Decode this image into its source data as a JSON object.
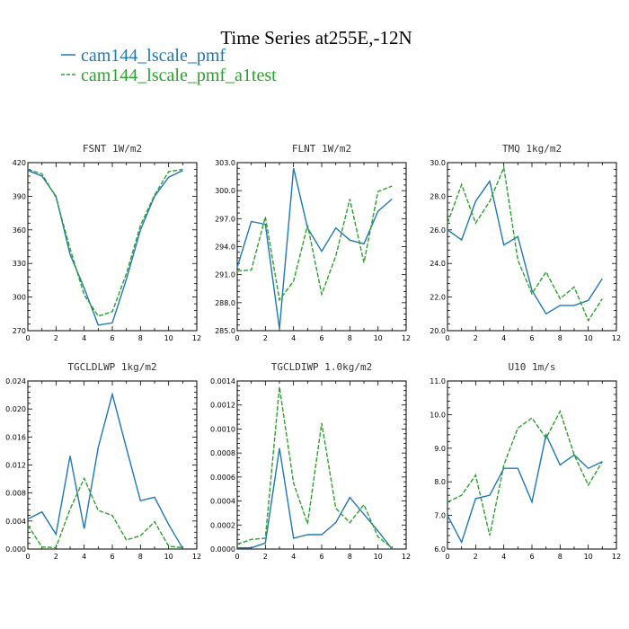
{
  "figure": {
    "title": "Time Series at255E,-12N",
    "legend": [
      {
        "name": "cam144_lscale_pmf",
        "color": "#1f77b4",
        "dash": "solid"
      },
      {
        "name": "cam144_lscale_pmf_a1test",
        "color": "#2ca02c",
        "dash": "dashed"
      }
    ]
  },
  "chart_data": [
    {
      "type": "line",
      "title": "FSNT   1W/m2",
      "x": [
        0,
        1,
        2,
        3,
        4,
        5,
        6,
        7,
        8,
        9,
        10,
        11
      ],
      "xlim": [
        0,
        12
      ],
      "xticks": [
        0,
        2,
        4,
        6,
        8,
        10,
        12
      ],
      "xtick_labels": [
        "0",
        "2",
        "4",
        "6",
        "8",
        "10",
        "12"
      ],
      "ylim": [
        270,
        420
      ],
      "yticks": [
        270,
        300,
        330,
        360,
        390,
        420
      ],
      "ytick_labels": [
        "270",
        "300",
        "330",
        "360",
        "390",
        "420"
      ],
      "series": [
        {
          "values": [
            413,
            408,
            390,
            338,
            308,
            275,
            277,
            316,
            360,
            390,
            407,
            413
          ]
        },
        {
          "values": [
            414,
            410,
            389,
            343,
            302,
            283,
            287,
            321,
            364,
            391,
            412,
            414
          ]
        }
      ]
    },
    {
      "type": "line",
      "title": "FLNT   1W/m2",
      "x": [
        0,
        1,
        2,
        3,
        4,
        5,
        6,
        7,
        8,
        9,
        10,
        11
      ],
      "xlim": [
        0,
        12
      ],
      "xticks": [
        0,
        2,
        4,
        6,
        8,
        10,
        12
      ],
      "xtick_labels": [
        "0",
        "2",
        "4",
        "6",
        "8",
        "10",
        "12"
      ],
      "ylim": [
        285,
        303
      ],
      "yticks": [
        285,
        288,
        291,
        294,
        297,
        300,
        303
      ],
      "ytick_labels": [
        "285.0",
        "288.0",
        "291.0",
        "294.0",
        "297.0",
        "300.0",
        "303.0"
      ],
      "series": [
        {
          "values": [
            291.8,
            296.7,
            296.4,
            285.2,
            302.4,
            296.0,
            293.5,
            296.0,
            294.7,
            294.3,
            297.8,
            299.1
          ]
        },
        {
          "values": [
            291.4,
            291.5,
            297.2,
            288.3,
            290.3,
            296.3,
            288.9,
            293.0,
            299.1,
            292.3,
            299.9,
            300.5
          ]
        }
      ]
    },
    {
      "type": "line",
      "title": "TMQ   1kg/m2",
      "x": [
        0,
        1,
        2,
        3,
        4,
        5,
        6,
        7,
        8,
        9,
        10,
        11
      ],
      "xlim": [
        0,
        12
      ],
      "xticks": [
        0,
        2,
        4,
        6,
        8,
        10,
        12
      ],
      "xtick_labels": [
        "0",
        "2",
        "4",
        "6",
        "8",
        "10",
        "12"
      ],
      "ylim": [
        20,
        30
      ],
      "yticks": [
        20,
        22,
        24,
        26,
        28,
        30
      ],
      "ytick_labels": [
        "20.0",
        "22.0",
        "24.0",
        "26.0",
        "28.0",
        "30.0"
      ],
      "series": [
        {
          "values": [
            26.0,
            25.4,
            27.7,
            28.9,
            25.1,
            25.6,
            22.4,
            21.0,
            21.5,
            21.5,
            21.8,
            23.1
          ]
        },
        {
          "values": [
            26.4,
            28.7,
            26.4,
            27.7,
            29.7,
            24.2,
            22.2,
            23.5,
            21.9,
            22.6,
            20.6,
            21.9
          ]
        }
      ]
    },
    {
      "type": "line",
      "title": "TGCLDLWP   1kg/m2",
      "x": [
        0,
        1,
        2,
        3,
        4,
        5,
        6,
        7,
        8,
        9,
        10,
        11
      ],
      "xlim": [
        0,
        12
      ],
      "xticks": [
        0,
        2,
        4,
        6,
        8,
        10,
        12
      ],
      "xtick_labels": [
        "0",
        "2",
        "4",
        "6",
        "8",
        "10",
        "12"
      ],
      "ylim": [
        0,
        0.024
      ],
      "yticks": [
        0,
        0.004,
        0.008,
        0.012,
        0.016,
        0.02,
        0.024
      ],
      "ytick_labels": [
        "0.000",
        "0.004",
        "0.008",
        "0.012",
        "0.016",
        "0.020",
        "0.024"
      ],
      "series": [
        {
          "values": [
            0.0043,
            0.0053,
            0.0021,
            0.0133,
            0.0029,
            0.0145,
            0.0221,
            0.0144,
            0.0069,
            0.0074,
            0.0035,
            0.0001
          ]
        },
        {
          "values": [
            0.0034,
            0.0003,
            0.0002,
            0.0057,
            0.0101,
            0.0055,
            0.0048,
            0.0013,
            0.0019,
            0.0039,
            0.0004,
            0.0002
          ]
        }
      ]
    },
    {
      "type": "line",
      "title": "TGCLDIWP   1.0kg/m2",
      "x": [
        0,
        1,
        2,
        3,
        4,
        5,
        6,
        7,
        8,
        9,
        10,
        11
      ],
      "xlim": [
        0,
        12
      ],
      "xticks": [
        0,
        2,
        4,
        6,
        8,
        10,
        12
      ],
      "xtick_labels": [
        "0",
        "2",
        "4",
        "6",
        "8",
        "10",
        "12"
      ],
      "ylim": [
        0,
        0.0014
      ],
      "yticks": [
        0,
        0.0002,
        0.0004,
        0.0006,
        0.0008,
        0.001,
        0.0012,
        0.0014
      ],
      "ytick_labels": [
        "0.0000",
        "0.0002",
        "0.0004",
        "0.0006",
        "0.0008",
        "0.0010",
        "0.0012",
        "0.0014"
      ],
      "series": [
        {
          "values": [
            1e-05,
            1e-05,
            5e-05,
            0.00084,
            9e-05,
            0.00012,
            0.00012,
            0.00022,
            0.00043,
            0.00029,
            0.00015,
            0.0
          ]
        },
        {
          "values": [
            4e-05,
            8e-05,
            9e-05,
            0.00135,
            0.00055,
            0.00021,
            0.00105,
            0.00034,
            0.00022,
            0.00037,
            0.0001,
            1e-05
          ]
        }
      ]
    },
    {
      "type": "line",
      "title": "U10   1m/s",
      "x": [
        0,
        1,
        2,
        3,
        4,
        5,
        6,
        7,
        8,
        9,
        10,
        11
      ],
      "xlim": [
        0,
        12
      ],
      "xticks": [
        0,
        2,
        4,
        6,
        8,
        10,
        12
      ],
      "xtick_labels": [
        "0",
        "2",
        "4",
        "6",
        "8",
        "10",
        "12"
      ],
      "ylim": [
        6,
        11
      ],
      "yticks": [
        6,
        7,
        8,
        9,
        10,
        11
      ],
      "ytick_labels": [
        "6.0",
        "7.0",
        "8.0",
        "9.0",
        "10.0",
        "11.0"
      ],
      "series": [
        {
          "values": [
            7.0,
            6.2,
            7.5,
            7.6,
            8.4,
            8.4,
            7.4,
            9.4,
            8.5,
            8.8,
            8.4,
            8.6
          ]
        },
        {
          "values": [
            7.4,
            7.6,
            8.2,
            6.4,
            8.5,
            9.6,
            9.9,
            9.3,
            10.1,
            8.8,
            7.9,
            8.6
          ]
        }
      ]
    }
  ]
}
